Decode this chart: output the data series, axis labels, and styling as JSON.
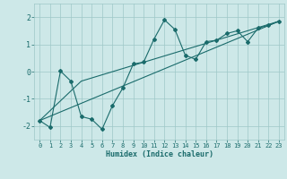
{
  "xlabel": "Humidex (Indice chaleur)",
  "background_color": "#cde8e8",
  "grid_color": "#9ec8c8",
  "line_color": "#1a6b6b",
  "xlim": [
    -0.5,
    23.5
  ],
  "ylim": [
    -2.5,
    2.5
  ],
  "xticks": [
    0,
    1,
    2,
    3,
    4,
    5,
    6,
    7,
    8,
    9,
    10,
    11,
    12,
    13,
    14,
    15,
    16,
    17,
    18,
    19,
    20,
    21,
    22,
    23
  ],
  "yticks": [
    -2,
    -1,
    0,
    1,
    2
  ],
  "curve1_x": [
    0,
    1,
    2,
    3,
    4,
    5,
    6,
    7,
    8,
    9,
    10,
    11,
    12,
    13,
    14,
    15,
    16,
    17,
    18,
    19,
    20,
    21,
    22,
    23
  ],
  "curve1_y": [
    -1.8,
    -2.05,
    0.02,
    -0.35,
    -1.65,
    -1.75,
    -2.12,
    -1.25,
    -0.6,
    0.28,
    0.35,
    1.2,
    1.9,
    1.55,
    0.6,
    0.45,
    1.1,
    1.15,
    1.4,
    1.5,
    1.1,
    1.6,
    1.7,
    1.85
  ],
  "curve2_x": [
    0,
    23
  ],
  "curve2_y": [
    -1.8,
    1.85
  ],
  "curve3_x": [
    0,
    4,
    23
  ],
  "curve3_y": [
    -1.8,
    -0.35,
    1.85
  ]
}
